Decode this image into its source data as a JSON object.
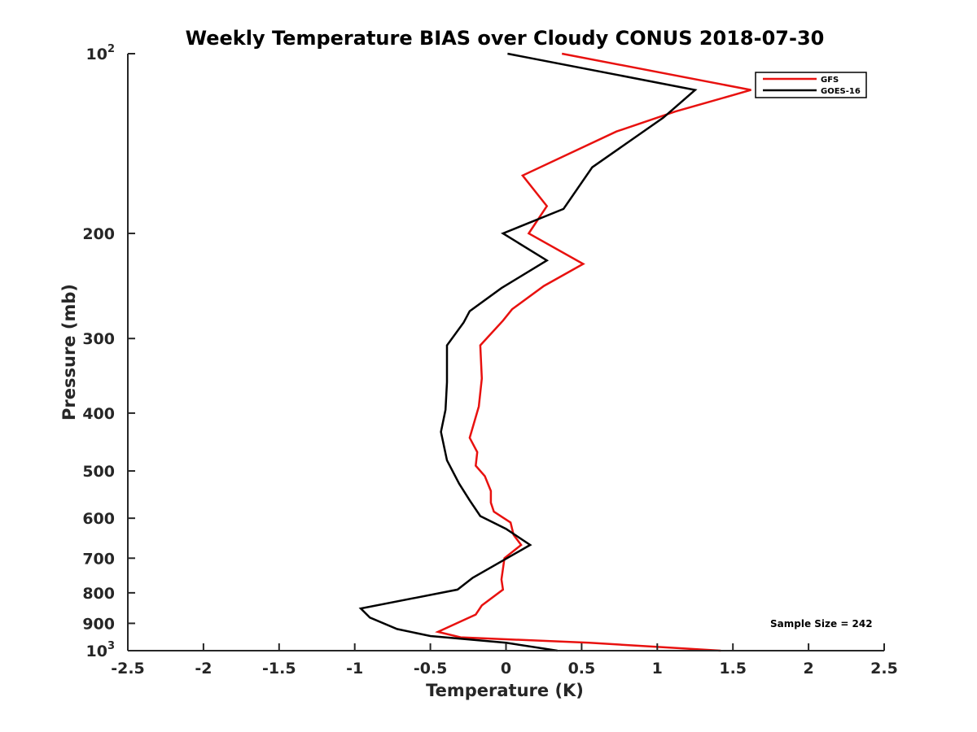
{
  "chart_data": {
    "type": "line",
    "title": "Weekly Temperature BIAS over Cloudy CONUS 2018-07-30",
    "xlabel": "Temperature (K)",
    "ylabel": "Pressure (mb)",
    "xlim": [
      -2.5,
      2.5
    ],
    "ylim": [
      1000,
      100
    ],
    "y_scale": "log",
    "y_reversed": true,
    "grid": false,
    "legend_position": "top-right",
    "x_ticks": [
      "-2.5",
      "-2",
      "-1.5",
      "-1",
      "-0.5",
      "0",
      "0.5",
      "1",
      "1.5",
      "2",
      "2.5"
    ],
    "y_ticks": [
      {
        "value": 100,
        "base": "10",
        "exp": "2"
      },
      {
        "value": 200,
        "label": "200"
      },
      {
        "value": 300,
        "label": "300"
      },
      {
        "value": 400,
        "label": "400"
      },
      {
        "value": 500,
        "label": "500"
      },
      {
        "value": 600,
        "label": "600"
      },
      {
        "value": 700,
        "label": "700"
      },
      {
        "value": 800,
        "label": "800"
      },
      {
        "value": 900,
        "label": "900"
      },
      {
        "value": 1000,
        "base": "10",
        "exp": "3"
      }
    ],
    "annotation": "Sample Size = 242",
    "series": [
      {
        "name": "GFS",
        "color": "#e8110f",
        "points": [
          [
            0.37,
            100
          ],
          [
            1.62,
            115
          ],
          [
            1.12,
            125
          ],
          [
            0.73,
            135
          ],
          [
            0.11,
            160
          ],
          [
            0.27,
            180
          ],
          [
            0.15,
            200
          ],
          [
            0.51,
            225
          ],
          [
            0.25,
            245
          ],
          [
            0.04,
            268
          ],
          [
            -0.02,
            280
          ],
          [
            -0.17,
            308
          ],
          [
            -0.16,
            350
          ],
          [
            -0.18,
            390
          ],
          [
            -0.24,
            440
          ],
          [
            -0.19,
            465
          ],
          [
            -0.2,
            490
          ],
          [
            -0.14,
            510
          ],
          [
            -0.1,
            540
          ],
          [
            -0.1,
            565
          ],
          [
            -0.08,
            585
          ],
          [
            0.03,
            610
          ],
          [
            0.05,
            640
          ],
          [
            0.1,
            665
          ],
          [
            -0.01,
            700
          ],
          [
            -0.03,
            760
          ],
          [
            -0.02,
            790
          ],
          [
            -0.16,
            840
          ],
          [
            -0.2,
            870
          ],
          [
            -0.45,
            930
          ],
          [
            -0.3,
            950
          ],
          [
            0.55,
            970
          ],
          [
            1.42,
            1000
          ]
        ]
      },
      {
        "name": "GOES-16",
        "color": "#000000",
        "points": [
          [
            0.01,
            100
          ],
          [
            1.25,
            115
          ],
          [
            1.04,
            128
          ],
          [
            0.57,
            155
          ],
          [
            0.38,
            182
          ],
          [
            -0.02,
            200
          ],
          [
            0.27,
            222
          ],
          [
            -0.03,
            247
          ],
          [
            -0.24,
            270
          ],
          [
            -0.28,
            282
          ],
          [
            -0.39,
            308
          ],
          [
            -0.39,
            355
          ],
          [
            -0.4,
            395
          ],
          [
            -0.43,
            430
          ],
          [
            -0.39,
            480
          ],
          [
            -0.31,
            525
          ],
          [
            -0.24,
            560
          ],
          [
            -0.17,
            595
          ],
          [
            0.0,
            625
          ],
          [
            0.16,
            665
          ],
          [
            0.05,
            690
          ],
          [
            -0.22,
            755
          ],
          [
            -0.32,
            790
          ],
          [
            -0.96,
            850
          ],
          [
            -0.9,
            880
          ],
          [
            -0.72,
            920
          ],
          [
            -0.5,
            945
          ],
          [
            0.0,
            970
          ],
          [
            0.34,
            1000
          ]
        ]
      }
    ]
  }
}
